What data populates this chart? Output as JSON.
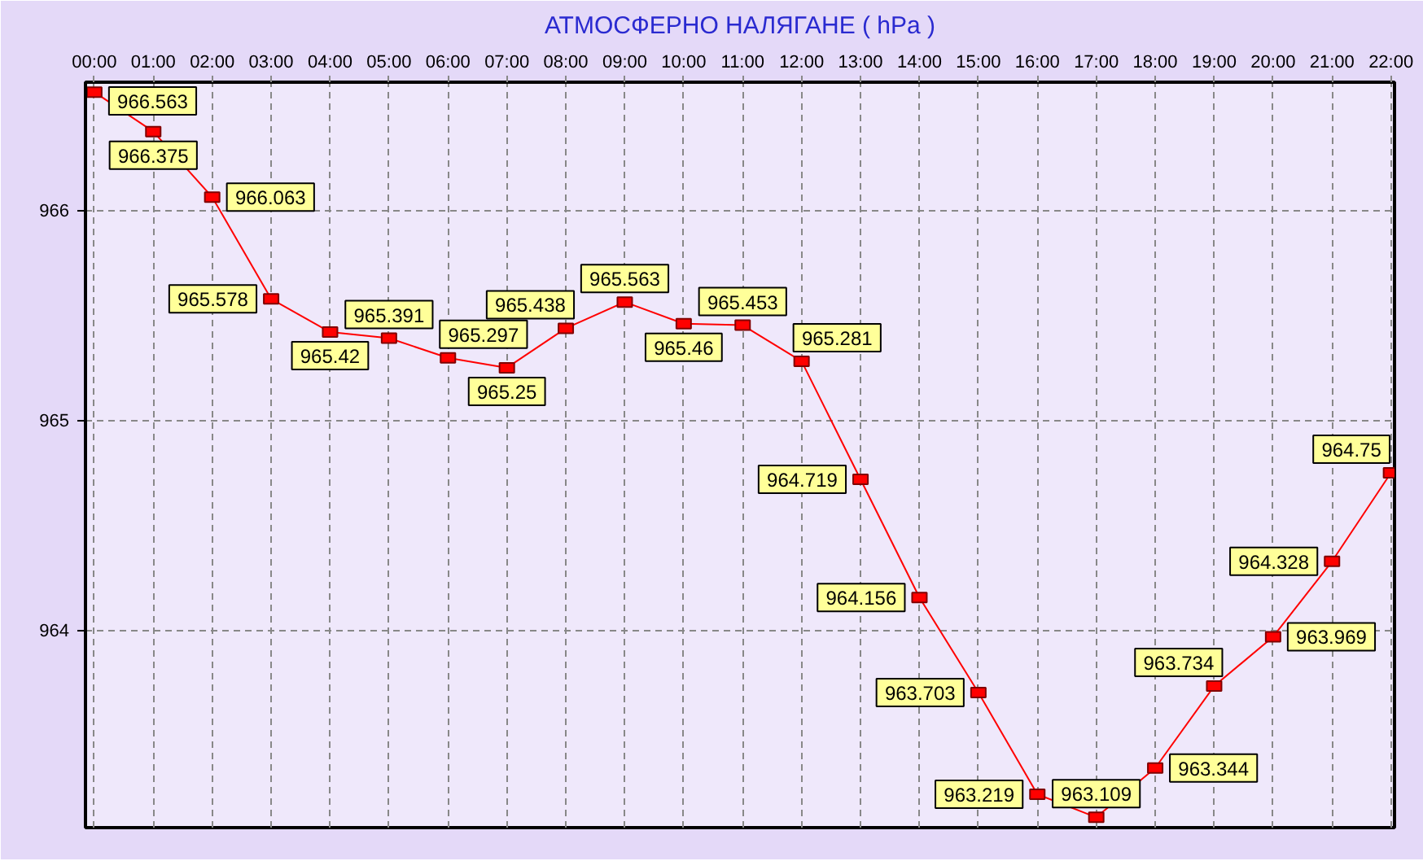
{
  "chart_data": {
    "type": "line",
    "title": "АТМОСФЕРНО НАЛЯГАНЕ ( hPa )",
    "categories": [
      "00:00",
      "01:00",
      "02:00",
      "03:00",
      "04:00",
      "05:00",
      "06:00",
      "07:00",
      "08:00",
      "09:00",
      "10:00",
      "11:00",
      "12:00",
      "13:00",
      "14:00",
      "15:00",
      "16:00",
      "17:00",
      "18:00",
      "19:00",
      "20:00",
      "21:00",
      "22:00"
    ],
    "values": [
      966.563,
      966.375,
      966.063,
      965.578,
      965.42,
      965.391,
      965.297,
      965.25,
      965.438,
      965.563,
      965.46,
      965.453,
      965.281,
      964.719,
      964.156,
      963.703,
      963.219,
      963.109,
      963.344,
      963.734,
      963.969,
      964.328,
      964.75
    ],
    "color": "#ff0000",
    "ylim": [
      963.06,
      966.61
    ],
    "yticks": [
      964,
      965,
      966
    ],
    "grid": true,
    "marker": "square",
    "line_style": "solid",
    "data_labels": true
  }
}
